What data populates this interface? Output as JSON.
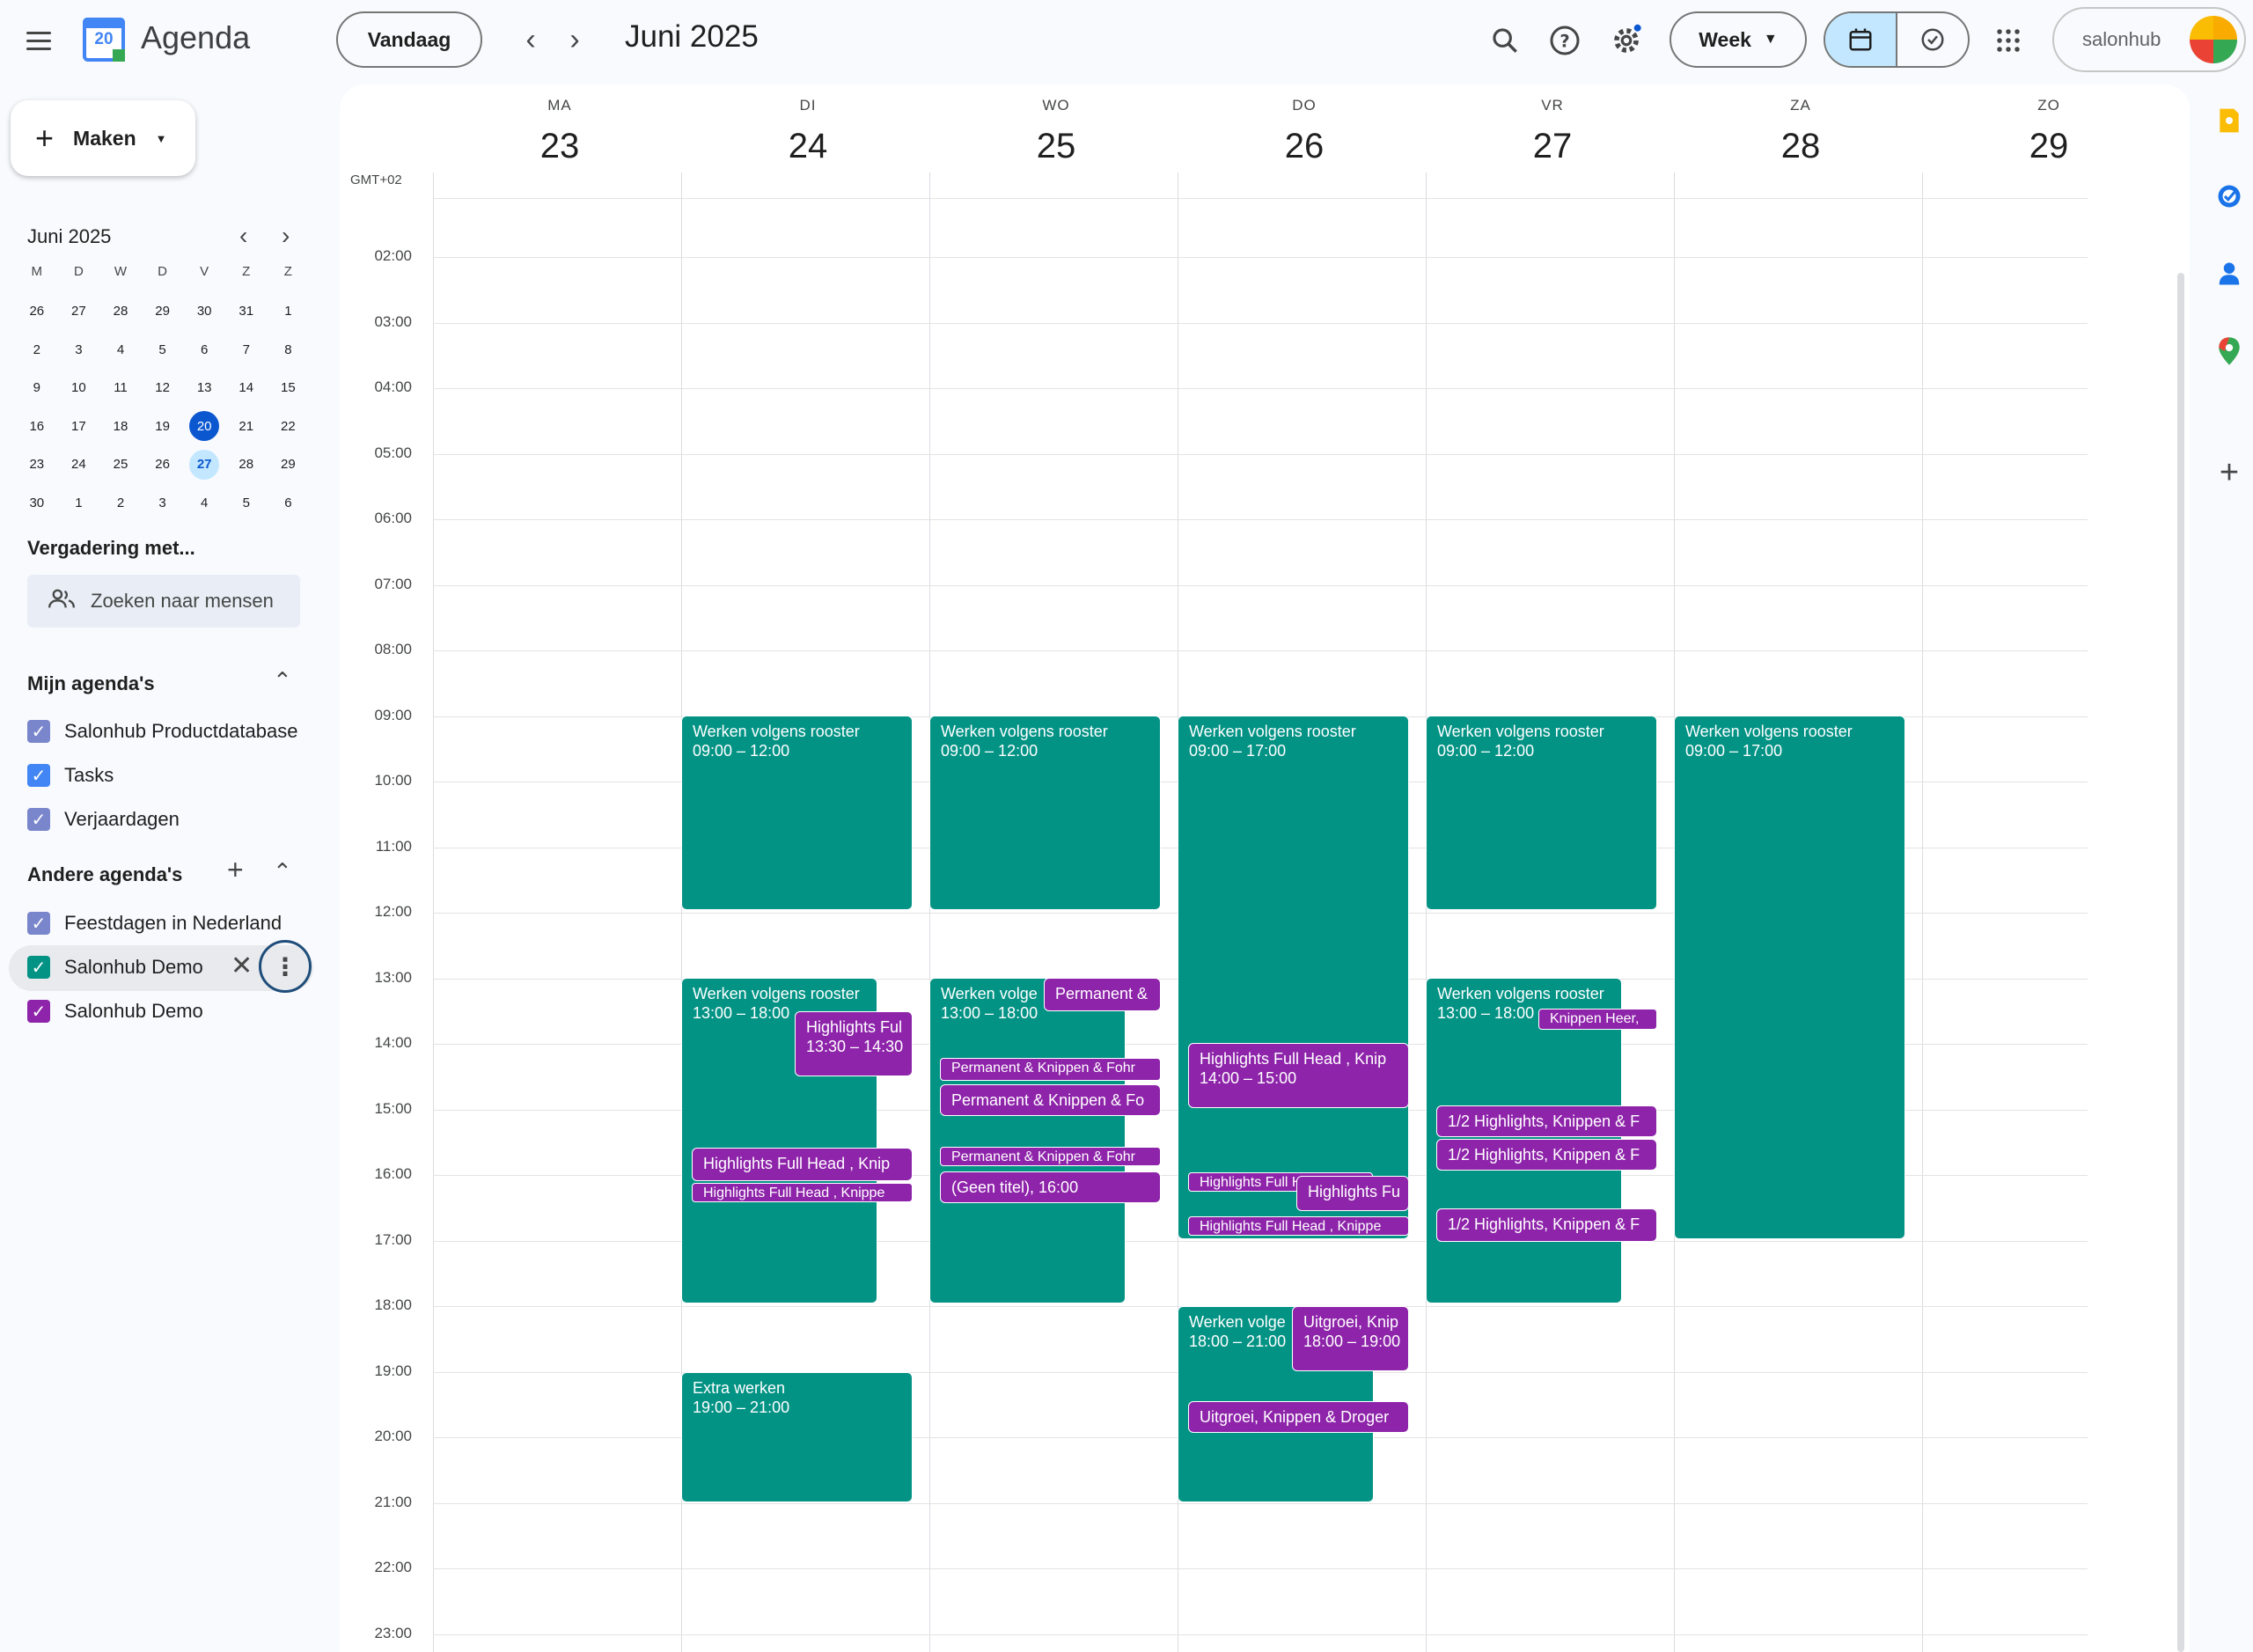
{
  "header": {
    "app_title": "Agenda",
    "logo_day": "20",
    "today_label": "Vandaag",
    "period": "Juni 2025",
    "view_label": "Week",
    "brand": "salonhub"
  },
  "sidebar": {
    "create_label": "Maken",
    "mini_month": "Juni 2025",
    "mini_weekdays": [
      "M",
      "D",
      "W",
      "D",
      "V",
      "Z",
      "Z"
    ],
    "mini_weeks": [
      [
        "26",
        "27",
        "28",
        "29",
        "30",
        "31",
        "1"
      ],
      [
        "2",
        "3",
        "4",
        "5",
        "6",
        "7",
        "8"
      ],
      [
        "9",
        "10",
        "11",
        "12",
        "13",
        "14",
        "15"
      ],
      [
        "16",
        "17",
        "18",
        "19",
        "20",
        "21",
        "22"
      ],
      [
        "23",
        "24",
        "25",
        "26",
        "27",
        "28",
        "29"
      ],
      [
        "30",
        "1",
        "2",
        "3",
        "4",
        "5",
        "6"
      ]
    ],
    "meeting_title": "Vergadering met...",
    "people_placeholder": "Zoeken naar mensen",
    "my_calendars_title": "Mijn agenda's",
    "my_calendars": [
      "Salonhub Productdatabase",
      "Tasks",
      "Verjaardagen"
    ],
    "other_calendars_title": "Andere agenda's",
    "other_calendars": [
      "Feestdagen in Nederland",
      "Salonhub Demo",
      "Salonhub Demo"
    ]
  },
  "colors": {
    "teal": "#039385",
    "purple": "#8e24aa",
    "lavender": "#7986cb",
    "accent": "#0b57d0"
  },
  "grid": {
    "timezone": "GMT+02",
    "days": [
      {
        "dow": "MA",
        "num": "23"
      },
      {
        "dow": "DI",
        "num": "24"
      },
      {
        "dow": "WO",
        "num": "25"
      },
      {
        "dow": "DO",
        "num": "26"
      },
      {
        "dow": "VR",
        "num": "27"
      },
      {
        "dow": "ZA",
        "num": "28"
      },
      {
        "dow": "ZO",
        "num": "29"
      }
    ],
    "hours": [
      "02:00",
      "03:00",
      "04:00",
      "05:00",
      "06:00",
      "07:00",
      "08:00",
      "09:00",
      "10:00",
      "11:00",
      "12:00",
      "13:00",
      "14:00",
      "15:00",
      "16:00",
      "17:00",
      "18:00",
      "19:00",
      "20:00",
      "21:00",
      "22:00",
      "23:00"
    ]
  },
  "events": {
    "work_label": "Werken volgens rooster",
    "work_label_short": "Werken volge",
    "tue_am_time": "09:00 – 12:00",
    "tue_pm_time": "13:00 – 18:00",
    "tue_hl1": "Highlights Ful",
    "tue_hl1_time": "13:30 – 14:30",
    "tue_hl2": "Highlights Full Head , Knip",
    "tue_hl3": "Highlights Full Head , Knippe",
    "tue_extra": "Extra werken",
    "tue_extra_time": "19:00 – 21:00",
    "wed_am_time": "09:00 – 12:00",
    "wed_pm_time": "13:00 – 18:00",
    "wed_perm1": "Permanent &",
    "wed_perm2": "Permanent & Knippen & Fohr",
    "wed_perm3": "Permanent & Knippen & Fo",
    "wed_perm4": "Permanent & Knippen & Fohr",
    "wed_untitled": "(Geen titel), 16:00",
    "thu_am_time": "09:00 – 17:00",
    "thu_hl1": "Highlights Full Head , Knip",
    "thu_hl1_time": "14:00 – 15:00",
    "thu_hl2": "Highlights Full Head , K",
    "thu_hl3": "Highlights Fu",
    "thu_hl4": "Highlights Full Head , Knippe",
    "thu_eve_time": "18:00 – 21:00",
    "thu_uit1": "Uitgroei, Knip",
    "thu_uit1_time": "18:00 – 19:00",
    "thu_uit2": "Uitgroei, Knippen & Droger",
    "fri_am_time": "09:00 – 12:00",
    "fri_pm_time": "13:00 – 18:00",
    "fri_knip": "Knippen Heer,",
    "fri_half1": "1/2 Highlights, Knippen & F",
    "fri_half2": "1/2 Highlights, Knippen & F",
    "fri_half3": "1/2 Highlights, Knippen & F",
    "sat_time": "09:00 – 17:00"
  }
}
